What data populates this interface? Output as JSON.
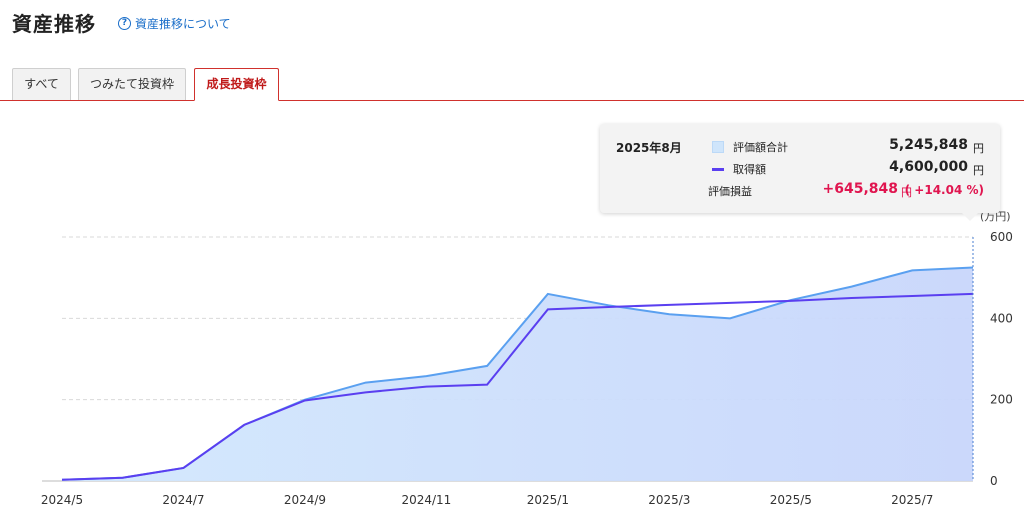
{
  "header": {
    "title": "資産推移",
    "help_link": "資産推移について",
    "help_icon": "question-circle-icon"
  },
  "tabs": [
    {
      "label": "すべて",
      "active": false
    },
    {
      "label": "つみたて投資枠",
      "active": false
    },
    {
      "label": "成長投資枠",
      "active": true
    }
  ],
  "tooltip": {
    "month": "2025年8月",
    "total_label": "評価額合計",
    "total_value": "5,245,848",
    "total_unit": "円",
    "cost_label": "取得額",
    "cost_value": "4,600,000",
    "cost_unit": "円",
    "gain_label": "評価損益",
    "gain_value": "+645,848",
    "gain_unit": "円",
    "gain_pct": "( +14.04 %)"
  },
  "colors": {
    "area_fill_top": "#c9e2fd",
    "area_line": "#5aa0f0",
    "cost_line": "#5a3ff0",
    "gain": "#e0154f",
    "tab_accent": "#d0312d",
    "link": "#1a6ec9"
  },
  "chart_data": {
    "type": "area",
    "unit_label": "(万円)",
    "ylim": [
      0,
      600
    ],
    "yticks": [
      0,
      200,
      400,
      600
    ],
    "x_tick_labels": [
      "2024/5",
      "2024/7",
      "2024/9",
      "2024/11",
      "2025/1",
      "2025/3",
      "2025/5",
      "2025/7"
    ],
    "x": [
      "2024/5",
      "2024/6",
      "2024/7",
      "2024/8",
      "2024/9",
      "2024/10",
      "2024/11",
      "2024/12",
      "2025/1",
      "2025/2",
      "2025/3",
      "2025/4",
      "2025/5",
      "2025/6",
      "2025/7",
      "2025/8"
    ],
    "series": [
      {
        "name": "評価額合計",
        "kind": "area",
        "values": [
          3,
          8,
          32,
          138,
          200,
          242,
          258,
          283,
          460,
          432,
          410,
          400,
          445,
          478,
          518,
          525
        ]
      },
      {
        "name": "取得額",
        "kind": "line",
        "values": [
          3,
          8,
          32,
          138,
          198,
          218,
          232,
          237,
          422,
          428,
          433,
          438,
          443,
          450,
          455,
          460
        ]
      }
    ],
    "grid": true,
    "highlight_index": 15
  }
}
